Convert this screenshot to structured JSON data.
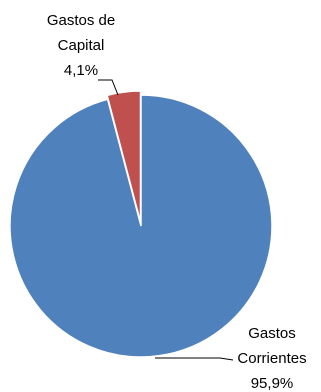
{
  "chart_data": {
    "type": "pie",
    "title": "",
    "categories": [
      "Gastos Corrientes",
      "Gastos de Capital"
    ],
    "values": [
      95.9,
      4.1
    ],
    "unit": "%",
    "colors": [
      "#4F81BD",
      "#C0504D"
    ],
    "labels": [
      {
        "line1": "Gastos",
        "line2": "Corrientes",
        "value": "95,9%"
      },
      {
        "line1": "Gastos de",
        "line2": "Capital",
        "value": "4,1%"
      }
    ],
    "legend": "none"
  }
}
